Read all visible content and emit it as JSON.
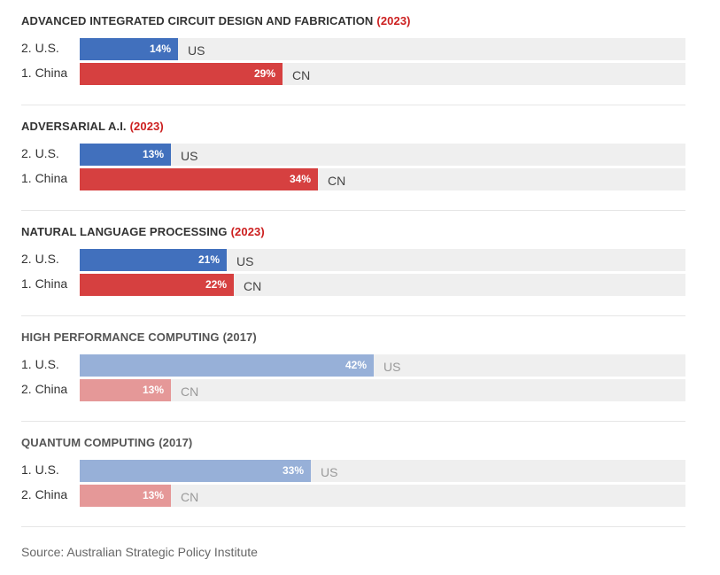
{
  "colors": {
    "us_bold": "#4170bd",
    "cn_bold": "#d64040",
    "us_muted": "#97b0d8",
    "cn_muted": "#e59898",
    "track": "#efefef",
    "year_highlight": "#cc1f1f",
    "code_dark": "#444444",
    "code_muted": "#999999"
  },
  "chart_data": {
    "type": "bar",
    "orientation": "horizontal",
    "xlim": [
      0,
      100
    ],
    "unit": "%",
    "panels": [
      {
        "title": "ADVANCED INTEGRATED CIRCUIT DESIGN AND FABRICATION",
        "year": "(2023)",
        "year_highlight": true,
        "emphasis": true,
        "rows": [
          {
            "label": "2. U.S.",
            "code": "US",
            "country": "us",
            "value": 14,
            "display": "14%"
          },
          {
            "label": "1. China",
            "code": "CN",
            "country": "cn",
            "value": 29,
            "display": "29%"
          }
        ]
      },
      {
        "title": "ADVERSARIAL A.I.",
        "year": "(2023)",
        "year_highlight": true,
        "emphasis": true,
        "rows": [
          {
            "label": "2. U.S.",
            "code": "US",
            "country": "us",
            "value": 13,
            "display": "13%"
          },
          {
            "label": "1. China",
            "code": "CN",
            "country": "cn",
            "value": 34,
            "display": "34%"
          }
        ]
      },
      {
        "title": "NATURAL LANGUAGE PROCESSING",
        "year": "(2023)",
        "year_highlight": true,
        "emphasis": true,
        "rows": [
          {
            "label": "2. U.S.",
            "code": "US",
            "country": "us",
            "value": 21,
            "display": "21%"
          },
          {
            "label": "1. China",
            "code": "CN",
            "country": "cn",
            "value": 22,
            "display": "22%"
          }
        ]
      },
      {
        "title": "HIGH PERFORMANCE COMPUTING",
        "year": "(2017)",
        "year_highlight": false,
        "emphasis": false,
        "rows": [
          {
            "label": "1. U.S.",
            "code": "US",
            "country": "us",
            "value": 42,
            "display": "42%"
          },
          {
            "label": "2. China",
            "code": "CN",
            "country": "cn",
            "value": 13,
            "display": "13%"
          }
        ]
      },
      {
        "title": "QUANTUM COMPUTING",
        "year": "(2017)",
        "year_highlight": false,
        "emphasis": false,
        "rows": [
          {
            "label": "1. U.S.",
            "code": "US",
            "country": "us",
            "value": 33,
            "display": "33%"
          },
          {
            "label": "2. China",
            "code": "CN",
            "country": "cn",
            "value": 13,
            "display": "13%"
          }
        ]
      }
    ]
  },
  "source": "Source: Australian Strategic Policy Institute"
}
